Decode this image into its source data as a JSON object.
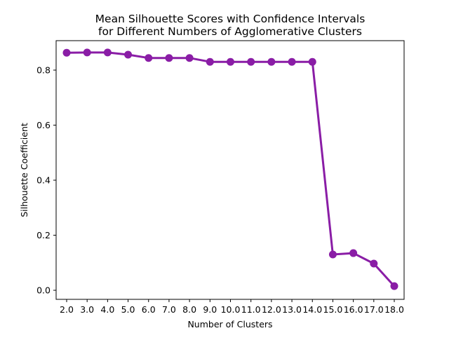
{
  "chart_data": {
    "type": "line",
    "title": "Mean Silhouette Scores with Confidence Intervals",
    "subtitle": "for Different Numbers of Agglomerative Clusters",
    "xlabel": "Number of Clusters",
    "ylabel": "Silhouette Coefficient",
    "categories": [
      "2.0",
      "3.0",
      "4.0",
      "5.0",
      "6.0",
      "7.0",
      "8.0",
      "9.0",
      "10.0",
      "11.0",
      "12.0",
      "13.0",
      "14.0",
      "15.0",
      "16.0",
      "17.0",
      "18.0"
    ],
    "values": [
      0.863,
      0.864,
      0.864,
      0.856,
      0.844,
      0.844,
      0.844,
      0.83,
      0.83,
      0.83,
      0.83,
      0.83,
      0.83,
      0.13,
      0.135,
      0.097,
      0.015
    ],
    "ylim": [
      -0.033,
      0.907
    ],
    "yticks": [
      "0.0",
      "0.2",
      "0.4",
      "0.6",
      "0.8"
    ],
    "color": "#8a1da6",
    "grid": false,
    "legend": "none"
  }
}
